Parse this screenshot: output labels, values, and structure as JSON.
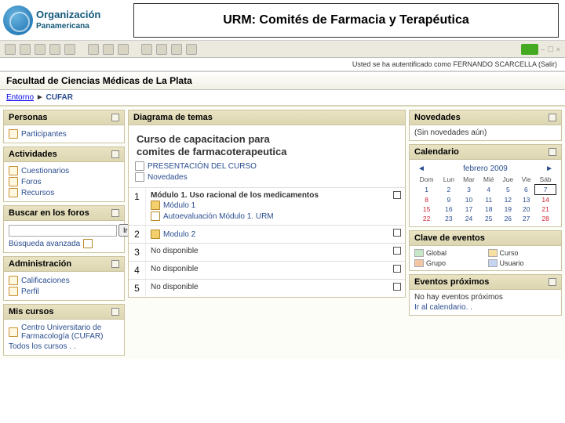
{
  "org": {
    "line1": "Organización",
    "line2": "Panamericana"
  },
  "title": "URM: Comités de Farmacia y Terapéutica",
  "auth_line": "Usted se ha autentificado como FERNANDO SCARCELLA (Salir)",
  "faculty": "Facultad de Ciencias Médicas de La Plata",
  "crumb": {
    "root": "Entorno",
    "here": "CUFAR"
  },
  "left": {
    "personas": {
      "title": "Personas",
      "items": [
        "Participantes"
      ]
    },
    "actividades": {
      "title": "Actividades",
      "items": [
        "Cuestionarios",
        "Foros",
        "Recursos"
      ]
    },
    "buscar": {
      "title": "Buscar en los foros",
      "go": "Ir",
      "adv": "Búsqueda avanzada"
    },
    "admin": {
      "title": "Administración",
      "items": [
        "Calificaciones",
        "Perfil"
      ]
    },
    "cursos": {
      "title": "Mis cursos",
      "item": "Centro Universitario de Farmacología (CUFAR)",
      "all": "Todos los cursos . ."
    }
  },
  "mid": {
    "diagram_title": "Diagrama de temas",
    "course_title_1": "Curso de capacitacion para",
    "course_title_2": "comites de farmacoterapeutica",
    "intro_items": [
      "PRESENTACIÓN DEL CURSO",
      "Novedades"
    ],
    "topics": [
      {
        "n": "1",
        "title": "Módulo 1. Uso racional de los medicamentos",
        "sub": [
          {
            "t": "Módulo 1",
            "k": "folder"
          },
          {
            "t": "Autoevaluación Módulo 1. URM",
            "k": "q"
          }
        ]
      },
      {
        "n": "2",
        "title": "Modulo 2",
        "sub": [],
        "folder": true
      },
      {
        "n": "3",
        "title": "No disponible",
        "sub": []
      },
      {
        "n": "4",
        "title": "No disponible",
        "sub": []
      },
      {
        "n": "5",
        "title": "No disponible",
        "sub": []
      }
    ]
  },
  "right": {
    "novedades": {
      "title": "Novedades",
      "empty": "(Sin novedades aún)"
    },
    "calendario": {
      "title": "Calendario",
      "month": "febrero 2009",
      "dow": [
        "Dom",
        "Lun",
        "Mar",
        "Mié",
        "Jue",
        "Vie",
        "Sáb"
      ],
      "weeks": [
        [
          {
            "d": "1"
          },
          {
            "d": "2"
          },
          {
            "d": "3"
          },
          {
            "d": "4"
          },
          {
            "d": "5"
          },
          {
            "d": "6"
          },
          {
            "d": "7",
            "today": true
          }
        ],
        [
          {
            "d": "8",
            "red": true
          },
          {
            "d": "9"
          },
          {
            "d": "10"
          },
          {
            "d": "11"
          },
          {
            "d": "12"
          },
          {
            "d": "13"
          },
          {
            "d": "14",
            "red": true
          }
        ],
        [
          {
            "d": "15",
            "red": true
          },
          {
            "d": "16"
          },
          {
            "d": "17"
          },
          {
            "d": "18"
          },
          {
            "d": "19"
          },
          {
            "d": "20"
          },
          {
            "d": "21",
            "red": true
          }
        ],
        [
          {
            "d": "22",
            "red": true
          },
          {
            "d": "23"
          },
          {
            "d": "24"
          },
          {
            "d": "25"
          },
          {
            "d": "26"
          },
          {
            "d": "27"
          },
          {
            "d": "28",
            "red": true
          }
        ]
      ]
    },
    "clave": {
      "title": "Clave de eventos",
      "items": [
        [
          "#c7e8c7",
          "Global"
        ],
        [
          "#f7e0a3",
          "Curso"
        ],
        [
          "#f3c7a3",
          "Grupo"
        ],
        [
          "#c7d6f0",
          "Usuario"
        ]
      ]
    },
    "proximos": {
      "title": "Eventos próximos",
      "empty": "No hay eventos próximos",
      "link": "Ir al calendario. ."
    }
  }
}
